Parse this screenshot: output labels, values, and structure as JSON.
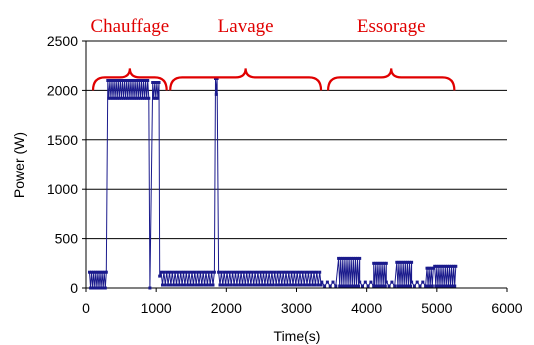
{
  "chart_data": {
    "type": "line",
    "title": "",
    "xlabel": "Time(s)",
    "ylabel": "Power (W)",
    "xlim": [
      0,
      6000
    ],
    "ylim": [
      0,
      2500
    ],
    "x_ticks": [
      "0",
      "1000",
      "2000",
      "3000",
      "4000",
      "5000",
      "6000"
    ],
    "y_ticks": [
      "0",
      "500",
      "1000",
      "1500",
      "2000",
      "2500"
    ],
    "grid": "horizontal",
    "legend": "none",
    "series_color": "#1a1a8c",
    "annotation_color": "#e00000",
    "annotations": [
      {
        "label": "Chauffage",
        "x_start": 100,
        "x_end": 1150,
        "y": 2000
      },
      {
        "label": "Lavage",
        "x_start": 1200,
        "x_end": 3350,
        "y": 2000
      },
      {
        "label": "Essorage",
        "x_start": 3450,
        "x_end": 5250,
        "y": 2000
      }
    ],
    "series": [
      {
        "segments": [
          {
            "x_start": 50,
            "x_end": 290,
            "low": 0,
            "high": 160,
            "step": 15
          },
          {
            "x_start": 310,
            "x_end": 900,
            "low": 1920,
            "high": 2100,
            "step": 15
          },
          {
            "x_start": 910,
            "x_end": 910,
            "low": 0,
            "high": 0,
            "step": 15
          },
          {
            "x_start": 950,
            "x_end": 1040,
            "low": 1920,
            "high": 2080,
            "step": 15
          },
          {
            "x_start": 1050,
            "x_end": 1060,
            "low": 0,
            "high": 120,
            "step": 15
          },
          {
            "x_start": 1070,
            "x_end": 1830,
            "low": 30,
            "high": 160,
            "step": 20
          },
          {
            "x_start": 1845,
            "x_end": 1880,
            "low": 1960,
            "high": 2120,
            "step": 12
          },
          {
            "x_start": 1890,
            "x_end": 3350,
            "low": 30,
            "high": 160,
            "step": 20
          },
          {
            "x_start": 3360,
            "x_end": 3580,
            "low": 20,
            "high": 60,
            "step": 40
          },
          {
            "x_start": 3600,
            "x_end": 3900,
            "low": 20,
            "high": 300,
            "step": 15
          },
          {
            "x_start": 3900,
            "x_end": 4100,
            "low": 20,
            "high": 60,
            "step": 40
          },
          {
            "x_start": 4100,
            "x_end": 4280,
            "low": 20,
            "high": 250,
            "step": 15
          },
          {
            "x_start": 4280,
            "x_end": 4430,
            "low": 20,
            "high": 60,
            "step": 40
          },
          {
            "x_start": 4430,
            "x_end": 4640,
            "low": 20,
            "high": 260,
            "step": 15
          },
          {
            "x_start": 4640,
            "x_end": 4860,
            "low": 20,
            "high": 60,
            "step": 40
          },
          {
            "x_start": 4860,
            "x_end": 4960,
            "low": 20,
            "high": 200,
            "step": 15
          },
          {
            "x_start": 4970,
            "x_end": 5270,
            "low": 20,
            "high": 220,
            "step": 15
          }
        ]
      }
    ]
  }
}
